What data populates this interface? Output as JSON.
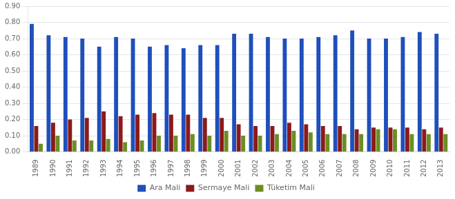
{
  "chart_data": {
    "type": "bar",
    "categories": [
      "1989",
      "1990",
      "1991",
      "1992",
      "1993",
      "1994",
      "1995",
      "1996",
      "1997",
      "1998",
      "1999",
      "2000",
      "2001",
      "2002",
      "2003",
      "2004",
      "2005",
      "2006",
      "2007",
      "2008",
      "2009",
      "2010",
      "2011",
      "2012",
      "2013"
    ],
    "series": [
      {
        "name": "Ara Mali",
        "color": "#1F4FBB",
        "values": [
          0.79,
          0.72,
          0.71,
          0.7,
          0.65,
          0.71,
          0.7,
          0.65,
          0.66,
          0.64,
          0.66,
          0.66,
          0.73,
          0.73,
          0.71,
          0.7,
          0.7,
          0.71,
          0.72,
          0.75,
          0.7,
          0.7,
          0.71,
          0.74,
          0.73
        ]
      },
      {
        "name": "Sermaye Mali",
        "color": "#8B1A1A",
        "values": [
          0.16,
          0.18,
          0.2,
          0.21,
          0.25,
          0.22,
          0.23,
          0.24,
          0.23,
          0.23,
          0.21,
          0.21,
          0.17,
          0.16,
          0.16,
          0.18,
          0.17,
          0.16,
          0.16,
          0.14,
          0.15,
          0.15,
          0.15,
          0.14,
          0.15
        ]
      },
      {
        "name": "Tüketim Mali",
        "color": "#6B8E23",
        "values": [
          0.05,
          0.1,
          0.07,
          0.07,
          0.08,
          0.06,
          0.07,
          0.1,
          0.1,
          0.11,
          0.1,
          0.13,
          0.1,
          0.1,
          0.11,
          0.13,
          0.12,
          0.11,
          0.11,
          0.11,
          0.14,
          0.14,
          0.11,
          0.11,
          0.11
        ]
      }
    ],
    "ylim": [
      0.0,
      0.9
    ],
    "yticks": [
      {
        "value": 0.0,
        "label": "0.00"
      },
      {
        "value": 0.1,
        "label": "0.10"
      },
      {
        "value": 0.2,
        "label": "0.20"
      },
      {
        "value": 0.3,
        "label": "0.30"
      },
      {
        "value": 0.4,
        "label": "0.40"
      },
      {
        "value": 0.5,
        "label": "0.50"
      },
      {
        "value": 0.6,
        "label": "0.60"
      },
      {
        "value": 0.7,
        "label": "0.70"
      },
      {
        "value": 0.8,
        "label": "0.80"
      },
      {
        "value": 0.9,
        "label": "0.90"
      }
    ],
    "grid": true,
    "legend": "bottom"
  }
}
